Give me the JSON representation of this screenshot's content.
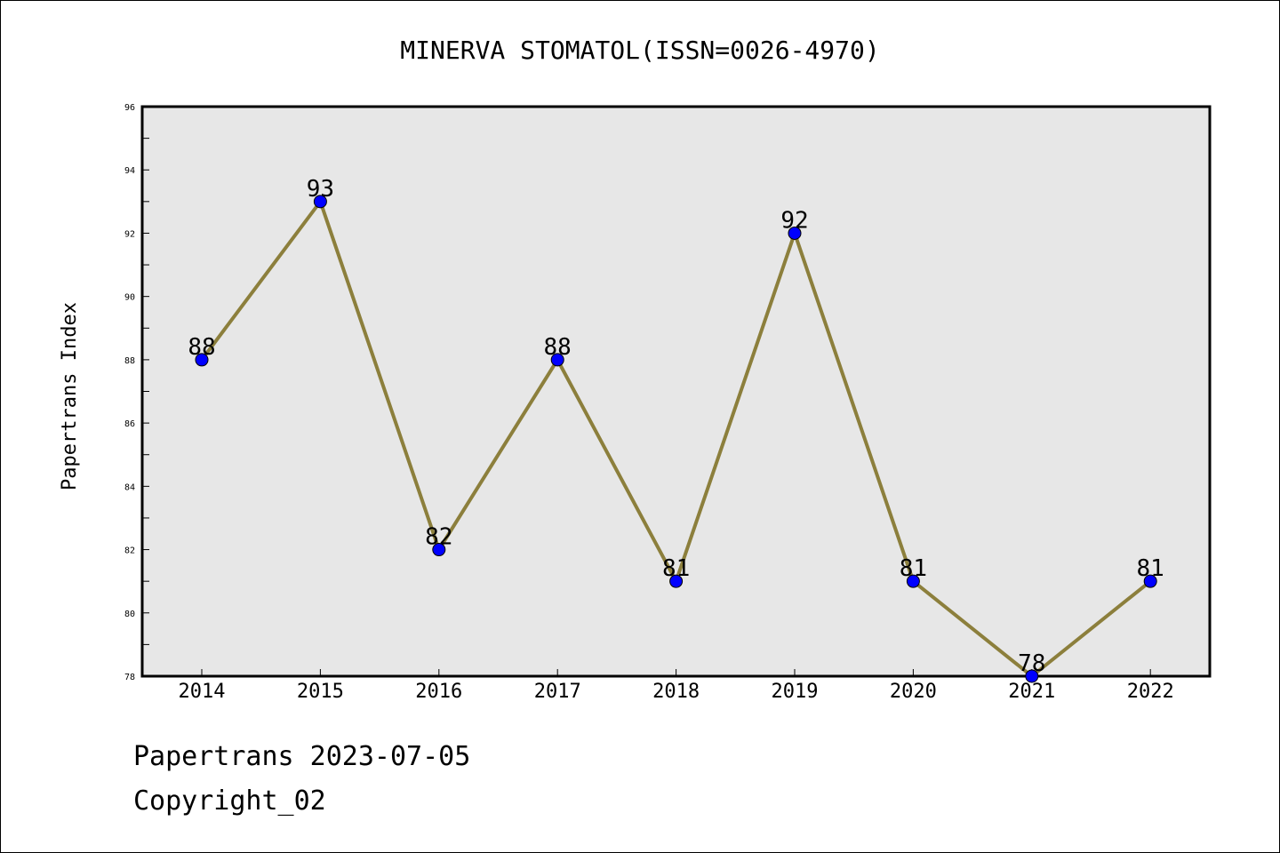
{
  "chart_data": {
    "type": "line",
    "title": "MINERVA STOMATOL(ISSN=0026-4970)",
    "xlabel": "",
    "ylabel": "Papertrans Index",
    "categories": [
      "2014",
      "2015",
      "2016",
      "2017",
      "2018",
      "2019",
      "2020",
      "2021",
      "2022"
    ],
    "series": [
      {
        "values": [
          88,
          93,
          82,
          88,
          81,
          92,
          81,
          78,
          81
        ]
      }
    ],
    "ylim": [
      78,
      96
    ],
    "yticks": [
      78,
      80,
      82,
      84,
      86,
      88,
      90,
      92,
      94,
      96
    ],
    "grid": false,
    "data_labels": true,
    "colors": {
      "line": "#8c7f3c",
      "marker": "#0000ff",
      "plot_background": "#e7e7e7"
    }
  },
  "footer": {
    "line1": "Papertrans 2023-07-05",
    "line2": "Copyright_02"
  }
}
